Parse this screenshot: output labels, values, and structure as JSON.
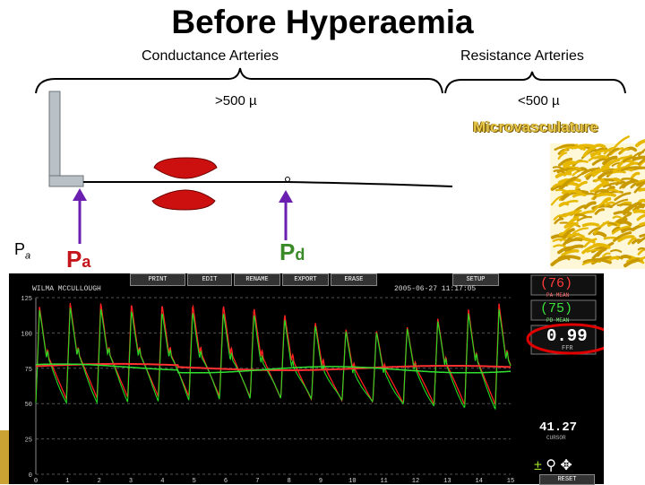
{
  "title": "Before Hyperaemia",
  "conductance_label": "Conductance Arteries",
  "resistance_label": "Resistance Arteries",
  "conductance_size": ">500 µ",
  "resistance_size": "<500 µ",
  "microvasculature_label": "Microvasculature",
  "left_label": {
    "main": "P",
    "sub": "a"
  },
  "pa_label": {
    "main": "P",
    "sub": "a"
  },
  "pd_label": {
    "main": "P",
    "sub": "d"
  },
  "monitor": {
    "toolbar": [
      "PRINT",
      "EDIT",
      "RENAME",
      "EXPORT",
      "ERASE",
      "SETUP"
    ],
    "patient": "WILMA MCCULLOUGH",
    "datetime": "2005-06-27 11:17:05",
    "y_ticks": [
      "125",
      "100",
      "75",
      "50",
      "25",
      "0"
    ],
    "x_ticks": [
      "0",
      "1",
      "2",
      "3",
      "4",
      "5",
      "6",
      "7",
      "8",
      "9",
      "10",
      "11",
      "12",
      "13",
      "14",
      "15"
    ],
    "pa_value": "(76)",
    "pa_caption": "PA MEAN",
    "pd_value": "(75)",
    "pd_caption": "PD MEAN",
    "ratio_value": "0.99",
    "ratio_caption": "FFR",
    "cursor_value": "41.27",
    "cursor_caption": "CURSOR",
    "reset_label": "RESET",
    "colors": {
      "pa_trace": "#ff2020",
      "pd_trace": "#22dd22",
      "ratio_circle": "#e00000"
    }
  }
}
